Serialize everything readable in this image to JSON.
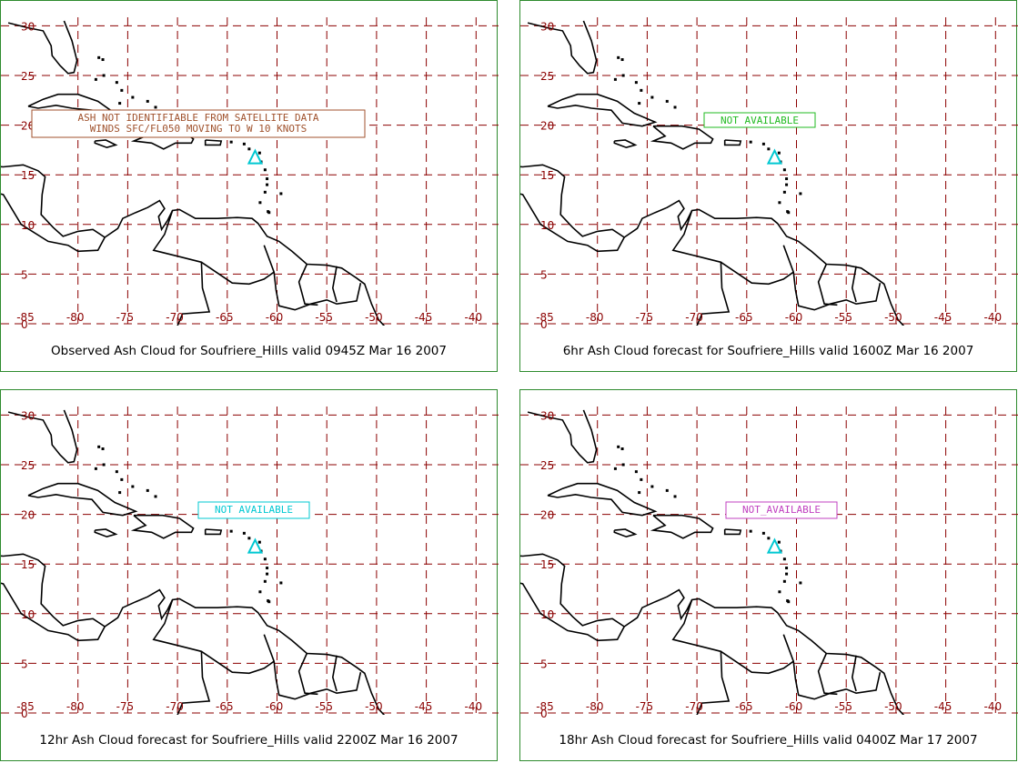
{
  "map_grid": {
    "lat_labels": [
      "30",
      "25",
      "20",
      "15",
      "10",
      "5",
      "0"
    ],
    "lon_labels": [
      "-85",
      "-80",
      "-75",
      "-70",
      "-65",
      "-60",
      "-55",
      "-50",
      "-45",
      "-40"
    ],
    "colors": {
      "grid": "#8b0000",
      "coast": "#000000",
      "volcano_marker": "#00c8d2",
      "panel_border": "#2e8b2e"
    }
  },
  "panels": [
    {
      "caption": "Observed Ash Cloud for Soufriere_Hills valid 0945Z Mar 16 2007",
      "box_lines": [
        "ASH NOT IDENTIFIABLE FROM SATELLITE DATA",
        "WINDS SFC/FL050 MOVING TO W 10 KNOTS"
      ],
      "box_color": "#a0522d"
    },
    {
      "caption": "6hr Ash Cloud forecast for Soufriere_Hills valid 1600Z Mar 16 2007",
      "box_lines": [
        "NOT AVAILABLE"
      ],
      "box_color": "#22bb22"
    },
    {
      "caption": "12hr Ash Cloud forecast for Soufriere_Hills valid 2200Z Mar 16 2007",
      "box_lines": [
        "NOT AVAILABLE"
      ],
      "box_color": "#00c8d2"
    },
    {
      "caption": "18hr Ash Cloud forecast for Soufriere_Hills valid 0400Z Mar 17 2007",
      "box_lines": [
        "NOT_AVAILABLE"
      ],
      "box_color": "#c040c0"
    }
  ]
}
